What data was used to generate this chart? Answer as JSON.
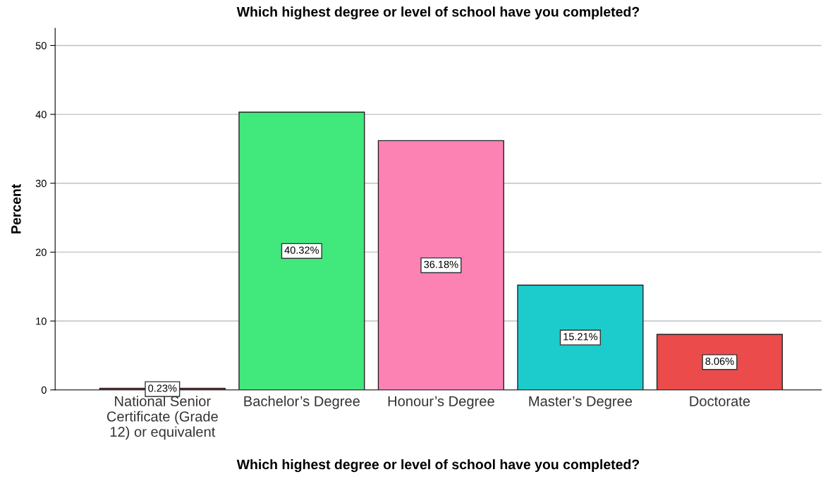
{
  "chart_data": {
    "type": "bar",
    "title": "Which highest degree or level of school have you completed?",
    "xlabel": "Which highest degree or level of school have you completed?",
    "ylabel": "Percent",
    "categories": [
      "National Senior\nCertificate (Grade\n12) or equivalent",
      "Bachelor’s Degree",
      "Honour’s Degree",
      "Master’s Degree",
      "Doctorate"
    ],
    "values": [
      0.23,
      40.32,
      36.18,
      15.21,
      8.06
    ],
    "value_labels": [
      "0.23%",
      "40.32%",
      "36.18%",
      "15.21%",
      "8.06%"
    ],
    "colors": [
      "#a52a2a",
      "#41e87c",
      "#fd82b4",
      "#1ccbcc",
      "#eb4b4b"
    ],
    "ylim": [
      0,
      52.5
    ],
    "yticks": [
      0,
      10,
      20,
      30,
      40,
      50
    ],
    "grid": "y",
    "legend": false
  }
}
